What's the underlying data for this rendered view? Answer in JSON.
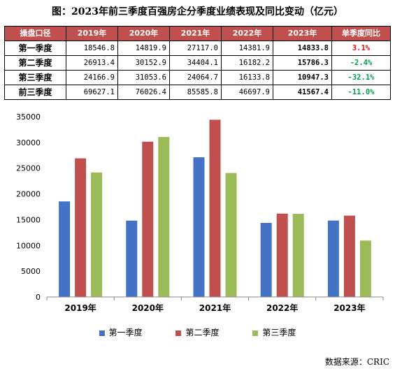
{
  "title": "图：2023年前三季度百强房企分季度业绩表现及同比变动（亿元）",
  "table": {
    "headers": [
      "操盘口径",
      "2019年",
      "2020年",
      "2021年",
      "2022年",
      "2023年",
      "单季度同比"
    ],
    "rows": [
      {
        "label": "第一季度",
        "values": [
          "18546.8",
          "14819.9",
          "27117.0",
          "14381.9",
          "14833.8"
        ],
        "change": "3.1%",
        "change_sign": "pos"
      },
      {
        "label": "第二季度",
        "values": [
          "26913.4",
          "30152.9",
          "34404.1",
          "16182.2",
          "15786.3"
        ],
        "change": "-2.4%",
        "change_sign": "neg"
      },
      {
        "label": "第三季度",
        "values": [
          "24166.9",
          "31053.6",
          "24064.7",
          "16133.8",
          "10947.3"
        ],
        "change": "-32.1%",
        "change_sign": "neg"
      },
      {
        "label": "前三季度",
        "values": [
          "69627.1",
          "76026.4",
          "85585.8",
          "46697.9",
          "41567.4"
        ],
        "change": "-11.0%",
        "change_sign": "neg"
      }
    ]
  },
  "chart_data": {
    "type": "bar",
    "categories": [
      "2019年",
      "2020年",
      "2021年",
      "2022年",
      "2023年"
    ],
    "series": [
      {
        "name": "第一季度",
        "color": "#4472c4",
        "values": [
          18546.8,
          14819.9,
          27117.0,
          14381.9,
          14833.8
        ]
      },
      {
        "name": "第二季度",
        "color": "#c0504d",
        "values": [
          26913.4,
          30152.9,
          34404.1,
          16182.2,
          15786.3
        ]
      },
      {
        "name": "第三季度",
        "color": "#9bbb59",
        "values": [
          24166.9,
          31053.6,
          24064.7,
          16133.8,
          10947.3
        ]
      }
    ],
    "ylim": [
      0,
      35000
    ],
    "yticks": [
      0,
      5000,
      10000,
      15000,
      20000,
      25000,
      30000,
      35000
    ],
    "grid": false,
    "legend": "bottom"
  },
  "source": "数据来源：CRIC"
}
